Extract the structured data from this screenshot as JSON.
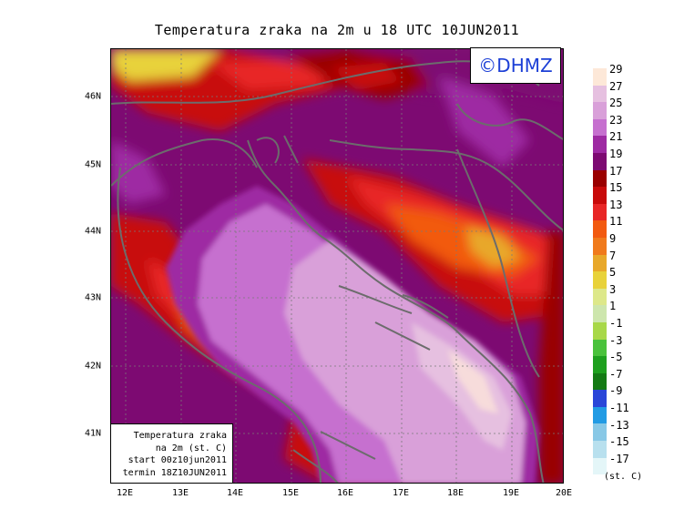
{
  "title": "Temperatura zraka na 2m u 18 UTC 10JUN2011",
  "logo": "©DHMZ",
  "x_ticks": [
    "12E",
    "13E",
    "14E",
    "15E",
    "16E",
    "17E",
    "18E",
    "19E",
    "20E"
  ],
  "y_ticks": [
    "46N",
    "45N",
    "44N",
    "43N",
    "42N",
    "41N"
  ],
  "colorbar": {
    "labels": [
      "29",
      "27",
      "25",
      "23",
      "21",
      "19",
      "17",
      "15",
      "13",
      "11",
      "9",
      "7",
      "5",
      "3",
      "1",
      "-1",
      "-3",
      "-5",
      "-7",
      "-9",
      "-11",
      "-13",
      "-15",
      "-17"
    ],
    "colors": [
      "#fde8d8",
      "#e6c0e0",
      "#d9a0d9",
      "#c670cf",
      "#9e2aa3",
      "#7d0a72",
      "#9a0000",
      "#c80a0a",
      "#e82626",
      "#f25a10",
      "#f07a1c",
      "#e8a82a",
      "#e8d23a",
      "#dde88a",
      "#cde6ad",
      "#a8d848",
      "#4ac23c",
      "#1ea01e",
      "#147a14",
      "#2a46d8",
      "#229be4",
      "#88c8e6",
      "#b8e0ee",
      "#e4f6f8"
    ],
    "unit": "(st. C)"
  },
  "info": {
    "line1": "Temperatura zraka",
    "line2": "na 2m (st. C)",
    "line3": "start 00z10jun2011",
    "line4": "termin 18Z10JUN2011"
  }
}
